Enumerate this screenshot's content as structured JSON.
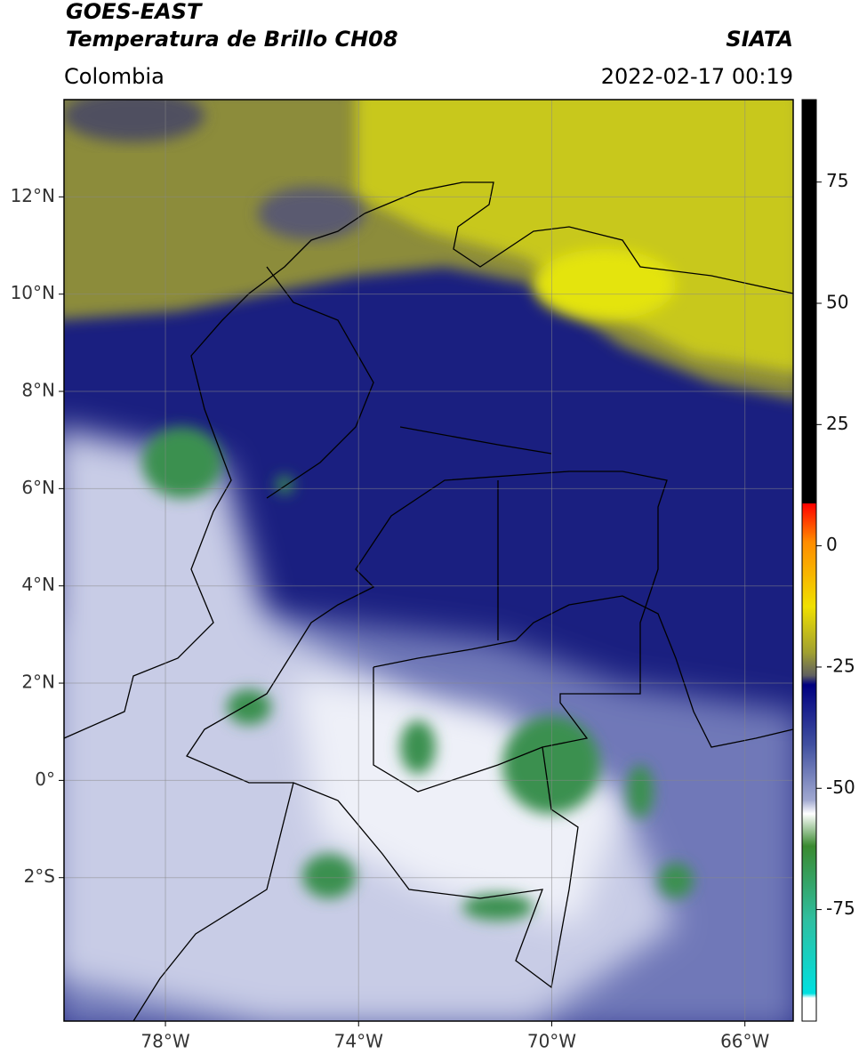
{
  "header": {
    "title": "GOES-EAST",
    "subtitle": "Temperatura de Brillo CH08",
    "source": "SIATA",
    "region": "Colombia",
    "datetime": "2022-02-17 00:19"
  },
  "map": {
    "xlim": [
      -80.1,
      -65
    ],
    "ylim": [
      -4.95,
      14
    ],
    "xticks": [
      {
        "value": -78,
        "label": "78°W"
      },
      {
        "value": -74,
        "label": "74°W"
      },
      {
        "value": -70,
        "label": "70°W"
      },
      {
        "value": -66,
        "label": "66°W"
      }
    ],
    "yticks": [
      {
        "value": 12,
        "label": "12°N"
      },
      {
        "value": 10,
        "label": "10°N"
      },
      {
        "value": 8,
        "label": "8°N"
      },
      {
        "value": 6,
        "label": "6°N"
      },
      {
        "value": 4,
        "label": "4°N"
      },
      {
        "value": 2,
        "label": "2°N"
      },
      {
        "value": 0,
        "label": "0°"
      },
      {
        "value": -2,
        "label": "2°S"
      }
    ]
  },
  "colorbar": {
    "lim": [
      -98,
      92
    ],
    "ticks": [
      75,
      50,
      25,
      0,
      -25,
      -50,
      -75
    ]
  }
}
